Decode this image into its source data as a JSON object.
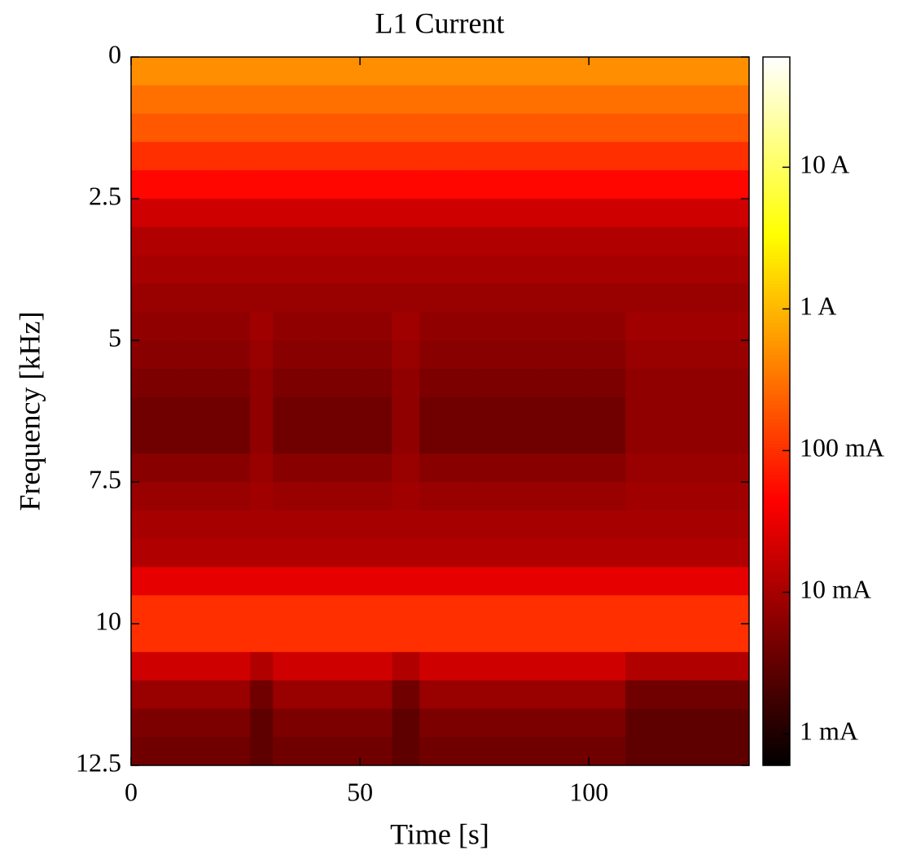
{
  "chart_data": {
    "type": "heatmap",
    "title": "L1 Current",
    "xlabel": "Time [s]",
    "ylabel": "Frequency [kHz]",
    "colormap": "hot",
    "color_log_scale": true,
    "y_inverted": true,
    "xlim": [
      0,
      135
    ],
    "xticks": [
      0,
      50,
      100
    ],
    "ylim": [
      0,
      12.5
    ],
    "yticks": [
      0,
      2.5,
      5,
      7.5,
      10,
      12.5
    ],
    "clim": [
      0.0006,
      60
    ],
    "cticks": [
      {
        "value": 0.001,
        "label": "1 mA"
      },
      {
        "value": 0.01,
        "label": "10 mA"
      },
      {
        "value": 0.1,
        "label": "100 mA"
      },
      {
        "value": 1,
        "label": "1 A"
      },
      {
        "value": 10,
        "label": "10 A"
      }
    ],
    "x_bins": [
      0,
      10,
      20,
      26,
      31,
      40,
      50,
      57,
      63,
      75,
      90,
      100,
      108,
      120,
      135
    ],
    "y_bins": [
      0,
      0.5,
      1,
      1.5,
      2,
      2.5,
      3,
      3.5,
      4,
      4.5,
      5,
      5.5,
      6,
      6.5,
      7,
      7.5,
      8,
      8.5,
      9,
      9.5,
      10,
      10.5,
      11,
      11.5,
      12,
      12.5
    ],
    "z": [
      [
        0.5,
        0.5,
        0.5,
        0.5,
        0.5,
        0.5,
        0.5,
        0.5,
        0.5,
        0.5,
        0.5,
        0.5,
        0.5,
        0.5
      ],
      [
        0.3,
        0.3,
        0.3,
        0.3,
        0.3,
        0.3,
        0.3,
        0.3,
        0.3,
        0.3,
        0.3,
        0.3,
        0.3,
        0.3
      ],
      [
        0.2,
        0.2,
        0.2,
        0.2,
        0.2,
        0.2,
        0.2,
        0.2,
        0.2,
        0.2,
        0.2,
        0.2,
        0.2,
        0.2
      ],
      [
        0.1,
        0.1,
        0.1,
        0.1,
        0.1,
        0.1,
        0.1,
        0.1,
        0.1,
        0.1,
        0.1,
        0.1,
        0.1,
        0.1
      ],
      [
        0.05,
        0.05,
        0.05,
        0.05,
        0.05,
        0.05,
        0.05,
        0.05,
        0.05,
        0.05,
        0.05,
        0.05,
        0.05,
        0.05
      ],
      [
        0.02,
        0.02,
        0.02,
        0.02,
        0.02,
        0.02,
        0.02,
        0.02,
        0.02,
        0.02,
        0.02,
        0.02,
        0.02,
        0.02
      ],
      [
        0.012,
        0.012,
        0.012,
        0.012,
        0.012,
        0.012,
        0.012,
        0.012,
        0.012,
        0.012,
        0.012,
        0.012,
        0.012,
        0.012
      ],
      [
        0.01,
        0.01,
        0.01,
        0.01,
        0.01,
        0.01,
        0.01,
        0.01,
        0.01,
        0.01,
        0.01,
        0.01,
        0.01,
        0.01
      ],
      [
        0.008,
        0.008,
        0.008,
        0.008,
        0.008,
        0.008,
        0.008,
        0.008,
        0.008,
        0.008,
        0.008,
        0.008,
        0.008,
        0.008
      ],
      [
        0.007,
        0.007,
        0.007,
        0.009,
        0.007,
        0.007,
        0.007,
        0.009,
        0.007,
        0.007,
        0.007,
        0.007,
        0.009,
        0.009
      ],
      [
        0.006,
        0.006,
        0.006,
        0.008,
        0.006,
        0.006,
        0.006,
        0.008,
        0.006,
        0.006,
        0.006,
        0.006,
        0.008,
        0.008
      ],
      [
        0.005,
        0.005,
        0.005,
        0.007,
        0.005,
        0.005,
        0.005,
        0.007,
        0.005,
        0.005,
        0.005,
        0.005,
        0.007,
        0.007
      ],
      [
        0.004,
        0.004,
        0.004,
        0.007,
        0.004,
        0.004,
        0.004,
        0.007,
        0.004,
        0.004,
        0.004,
        0.004,
        0.007,
        0.007
      ],
      [
        0.004,
        0.004,
        0.004,
        0.007,
        0.004,
        0.004,
        0.004,
        0.007,
        0.004,
        0.004,
        0.004,
        0.004,
        0.007,
        0.007
      ],
      [
        0.006,
        0.006,
        0.006,
        0.008,
        0.006,
        0.006,
        0.006,
        0.008,
        0.006,
        0.006,
        0.006,
        0.006,
        0.008,
        0.008
      ],
      [
        0.008,
        0.008,
        0.008,
        0.009,
        0.008,
        0.008,
        0.008,
        0.009,
        0.008,
        0.008,
        0.008,
        0.008,
        0.009,
        0.009
      ],
      [
        0.01,
        0.01,
        0.01,
        0.01,
        0.01,
        0.01,
        0.01,
        0.01,
        0.01,
        0.01,
        0.01,
        0.01,
        0.01,
        0.01
      ],
      [
        0.012,
        0.012,
        0.012,
        0.012,
        0.012,
        0.012,
        0.012,
        0.012,
        0.012,
        0.012,
        0.012,
        0.012,
        0.012,
        0.012
      ],
      [
        0.03,
        0.03,
        0.03,
        0.03,
        0.03,
        0.03,
        0.03,
        0.03,
        0.03,
        0.03,
        0.03,
        0.03,
        0.03,
        0.03
      ],
      [
        0.1,
        0.1,
        0.1,
        0.1,
        0.1,
        0.1,
        0.1,
        0.1,
        0.1,
        0.1,
        0.1,
        0.1,
        0.1,
        0.1
      ],
      [
        0.1,
        0.1,
        0.1,
        0.1,
        0.1,
        0.1,
        0.1,
        0.1,
        0.1,
        0.1,
        0.1,
        0.1,
        0.1,
        0.1
      ],
      [
        0.02,
        0.02,
        0.02,
        0.012,
        0.02,
        0.02,
        0.02,
        0.012,
        0.02,
        0.02,
        0.02,
        0.02,
        0.012,
        0.012
      ],
      [
        0.008,
        0.008,
        0.008,
        0.004,
        0.008,
        0.008,
        0.008,
        0.004,
        0.008,
        0.008,
        0.008,
        0.008,
        0.004,
        0.004
      ],
      [
        0.005,
        0.005,
        0.005,
        0.003,
        0.005,
        0.005,
        0.005,
        0.003,
        0.005,
        0.005,
        0.005,
        0.005,
        0.003,
        0.003
      ],
      [
        0.004,
        0.004,
        0.004,
        0.003,
        0.004,
        0.004,
        0.004,
        0.003,
        0.004,
        0.004,
        0.004,
        0.004,
        0.003,
        0.003
      ]
    ]
  }
}
